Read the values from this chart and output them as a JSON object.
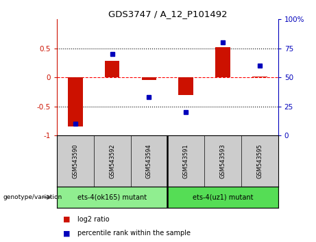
{
  "title": "GDS3747 / A_12_P101492",
  "samples": [
    "GSM543590",
    "GSM543592",
    "GSM543594",
    "GSM543591",
    "GSM543593",
    "GSM543595"
  ],
  "log2_ratio": [
    -0.85,
    0.28,
    -0.04,
    -0.3,
    0.52,
    0.01
  ],
  "percentile_rank": [
    10,
    70,
    33,
    20,
    80,
    60
  ],
  "groups": [
    {
      "label": "ets-4(ok165) mutant",
      "indices": [
        0,
        1,
        2
      ],
      "color": "#90EE90"
    },
    {
      "label": "ets-4(uz1) mutant",
      "indices": [
        3,
        4,
        5
      ],
      "color": "#55DD55"
    }
  ],
  "bar_color": "#CC1100",
  "dot_color": "#0000BB",
  "left_ylim": [
    -1.0,
    1.0
  ],
  "right_ylim": [
    0,
    100
  ],
  "left_yticks": [
    -1,
    -0.5,
    0,
    0.5
  ],
  "left_yticklabels": [
    "-1",
    "-0.5",
    "0",
    "0.5"
  ],
  "right_yticks": [
    0,
    25,
    50,
    75,
    100
  ],
  "right_yticklabels": [
    "0",
    "25",
    "50",
    "75",
    "100%"
  ],
  "legend_items": [
    {
      "label": "log2 ratio",
      "color": "#CC1100"
    },
    {
      "label": "percentile rank within the sample",
      "color": "#0000BB"
    }
  ]
}
